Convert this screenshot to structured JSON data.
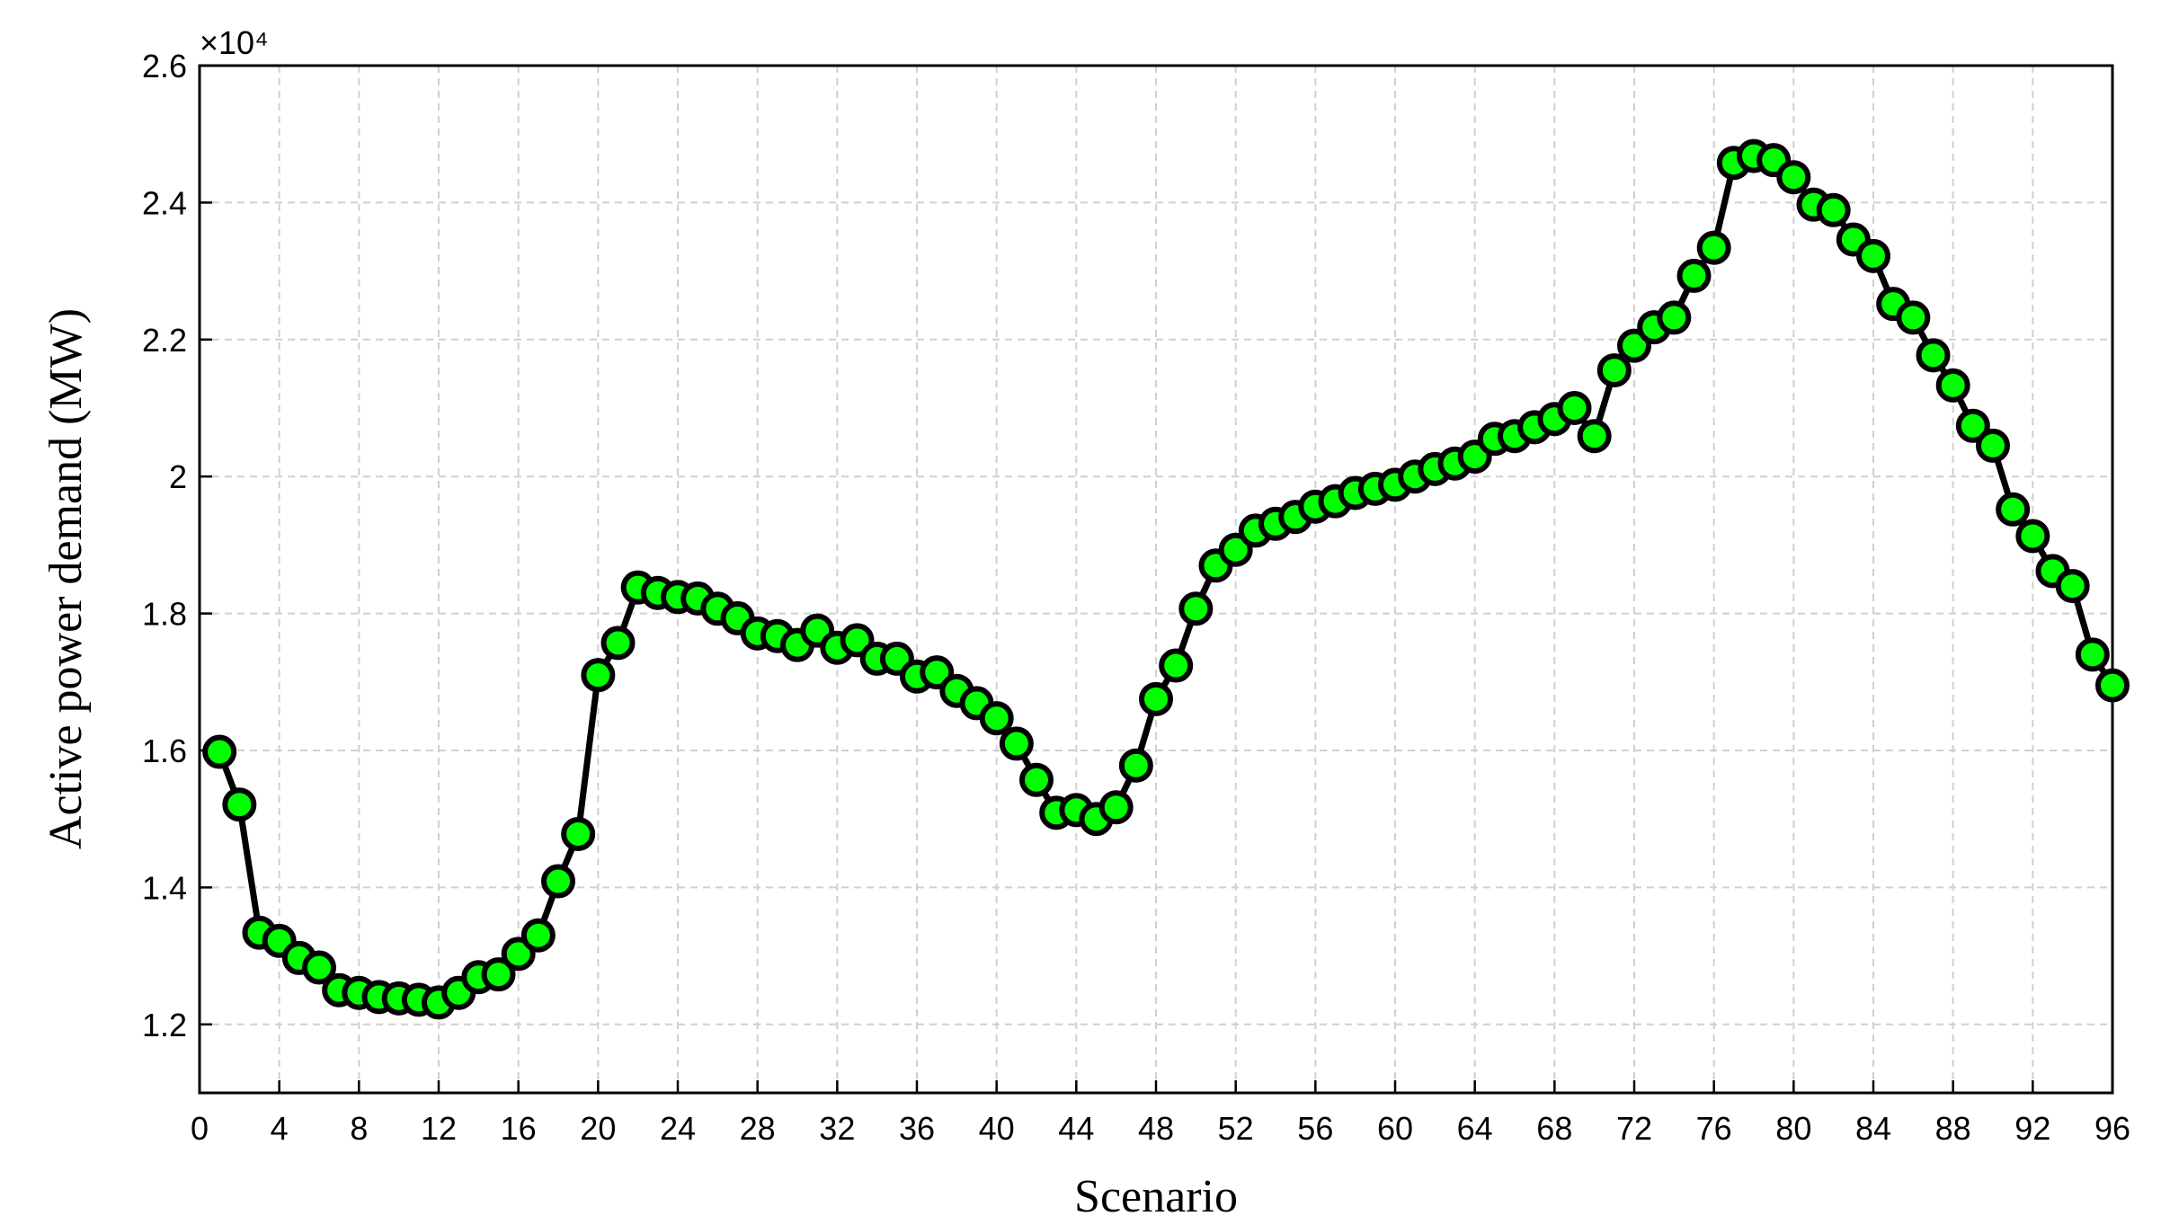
{
  "chart_data": {
    "type": "line",
    "x_label": "Scenario",
    "y_label": "Active power demand (MW)",
    "y_multiplier_label": "×10⁴",
    "x": [
      1,
      2,
      3,
      4,
      5,
      6,
      7,
      8,
      9,
      10,
      11,
      12,
      13,
      14,
      15,
      16,
      17,
      18,
      19,
      20,
      21,
      22,
      23,
      24,
      25,
      26,
      27,
      28,
      29,
      30,
      31,
      32,
      33,
      34,
      35,
      36,
      37,
      38,
      39,
      40,
      41,
      42,
      43,
      44,
      45,
      46,
      47,
      48,
      49,
      50,
      51,
      52,
      53,
      54,
      55,
      56,
      57,
      58,
      59,
      60,
      61,
      62,
      63,
      64,
      65,
      66,
      67,
      68,
      69,
      70,
      71,
      72,
      73,
      74,
      75,
      76,
      77,
      78,
      79,
      80,
      81,
      82,
      83,
      84,
      85,
      86,
      87,
      88,
      89,
      90,
      91,
      92,
      93,
      94,
      95,
      96
    ],
    "series": [
      {
        "color": "#00ff00",
        "values": [
          15980,
          15210,
          13340,
          13220,
          12970,
          12830,
          12500,
          12460,
          12400,
          12380,
          12360,
          12320,
          12460,
          12690,
          12730,
          13030,
          13300,
          14090,
          14780,
          17100,
          17570,
          18380,
          18300,
          18240,
          18220,
          18070,
          17930,
          17710,
          17670,
          17540,
          17750,
          17500,
          17610,
          17340,
          17340,
          17080,
          17140,
          16870,
          16690,
          16470,
          16100,
          15570,
          15090,
          15130,
          15000,
          15170,
          15780,
          16750,
          17240,
          18070,
          18700,
          18930,
          19210,
          19310,
          19410,
          19560,
          19640,
          19760,
          19820,
          19880,
          20000,
          20110,
          20190,
          20290,
          20550,
          20590,
          20720,
          20840,
          21000,
          20590,
          21550,
          21910,
          22180,
          22320,
          22930,
          23340,
          24580,
          24680,
          24620,
          24370,
          23970,
          23890,
          23460,
          23220,
          22520,
          22320,
          21770,
          21330,
          20740,
          20450,
          19520,
          19130,
          18620,
          18400,
          17400,
          16950
        ]
      }
    ],
    "xlim": [
      0,
      96
    ],
    "xticks": [
      0,
      4,
      8,
      12,
      16,
      20,
      24,
      28,
      32,
      36,
      40,
      44,
      48,
      52,
      56,
      60,
      64,
      68,
      72,
      76,
      80,
      84,
      88,
      92,
      96
    ],
    "ylim": [
      11000,
      26000
    ],
    "yticks": [
      {
        "value": 12000,
        "label": "1.2"
      },
      {
        "value": 14000,
        "label": "1.4"
      },
      {
        "value": 16000,
        "label": "1.6"
      },
      {
        "value": 18000,
        "label": "1.8"
      },
      {
        "value": 20000,
        "label": "2"
      },
      {
        "value": 22000,
        "label": "2.2"
      },
      {
        "value": 24000,
        "label": "2.4"
      },
      {
        "value": 26000,
        "label": "2.6"
      }
    ],
    "grid": true
  }
}
